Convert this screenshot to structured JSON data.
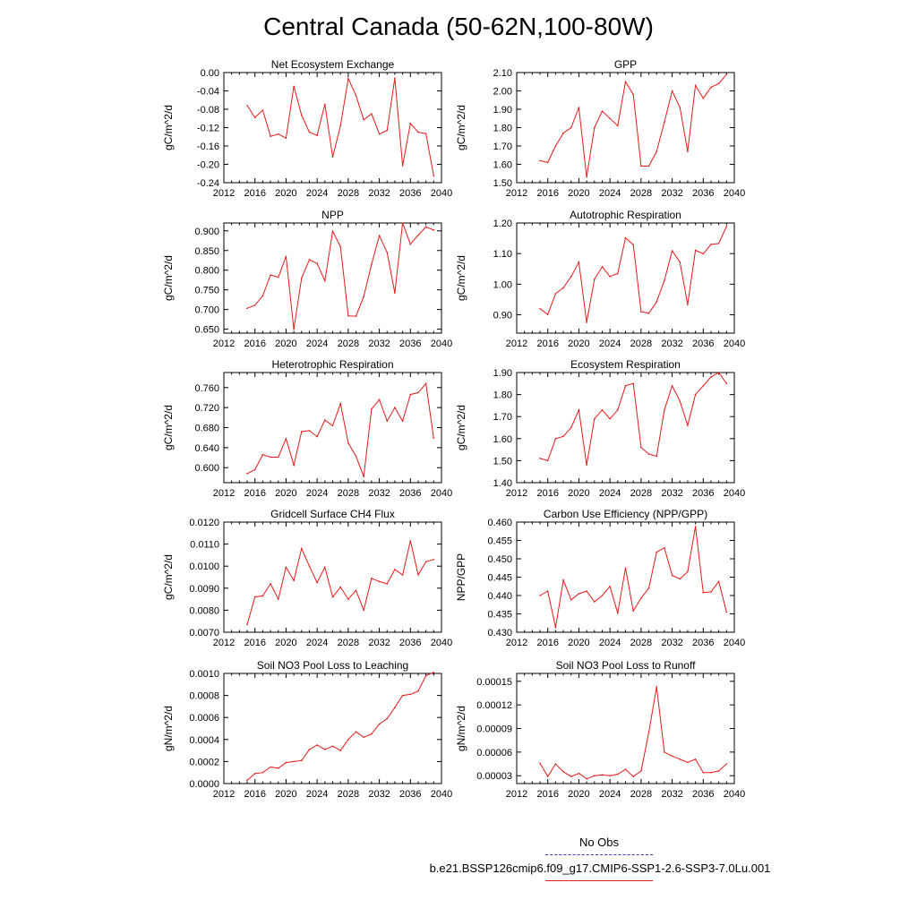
{
  "title": "Central Canada (50-62N,100-80W)",
  "legend": {
    "obs_label": "No Obs",
    "case_label": "b.e21.BSSP126cmip6.f09_g17.CMIP6-SSP1-2.6-SSP3-7.0Lu.001",
    "obs_color": "#3a3ac8",
    "case_color": "#e51a1a"
  },
  "chart_data": [
    {
      "type": "line",
      "title": "Net Ecosystem Exchange",
      "ylabel": "gC/m^2/d",
      "xlim": [
        2012,
        2040
      ],
      "xticks": [
        "2012",
        "2016",
        "2020",
        "2024",
        "2028",
        "2032",
        "2036",
        "2040"
      ],
      "ylim": [
        -0.24,
        0.0
      ],
      "yticks": [
        "0.00",
        "-0.04",
        "-0.08",
        "-0.12",
        "-0.16",
        "-0.20",
        "-0.24"
      ],
      "x": [
        2015,
        2016,
        2017,
        2018,
        2019,
        2020,
        2021,
        2022,
        2023,
        2024,
        2025,
        2026,
        2027,
        2028,
        2029,
        2030,
        2031,
        2032,
        2033,
        2034,
        2035,
        2036,
        2037,
        2038,
        2039
      ],
      "series": [
        {
          "values": [
            -0.072,
            -0.098,
            -0.082,
            -0.139,
            -0.134,
            -0.143,
            -0.03,
            -0.093,
            -0.13,
            -0.137,
            -0.069,
            -0.184,
            -0.116,
            -0.013,
            -0.05,
            -0.103,
            -0.09,
            -0.134,
            -0.126,
            -0.012,
            -0.203,
            -0.111,
            -0.13,
            -0.133,
            -0.225
          ]
        }
      ]
    },
    {
      "type": "line",
      "title": "GPP",
      "ylabel": "gC/m^2/d",
      "xlim": [
        2012,
        2040
      ],
      "xticks": [
        "2012",
        "2016",
        "2020",
        "2024",
        "2028",
        "2032",
        "2036",
        "2040"
      ],
      "ylim": [
        1.5,
        2.1
      ],
      "yticks": [
        "2.10",
        "2.00",
        "1.90",
        "1.80",
        "1.70",
        "1.60",
        "1.50"
      ],
      "x": [
        2015,
        2016,
        2017,
        2018,
        2019,
        2020,
        2021,
        2022,
        2023,
        2024,
        2025,
        2026,
        2027,
        2028,
        2029,
        2030,
        2031,
        2032,
        2033,
        2034,
        2035,
        2036,
        2037,
        2038,
        2039
      ],
      "series": [
        {
          "values": [
            1.62,
            1.61,
            1.7,
            1.77,
            1.8,
            1.91,
            1.53,
            1.8,
            1.89,
            1.85,
            1.81,
            2.05,
            1.98,
            1.59,
            1.59,
            1.67,
            1.83,
            2.0,
            1.91,
            1.67,
            2.03,
            1.96,
            2.02,
            2.04,
            2.09
          ]
        }
      ]
    },
    {
      "type": "line",
      "title": "NPP",
      "ylabel": "gC/m^2/d",
      "xlim": [
        2012,
        2040
      ],
      "xticks": [
        "2012",
        "2016",
        "2020",
        "2024",
        "2028",
        "2032",
        "2036",
        "2040"
      ],
      "ylim": [
        0.64,
        0.92
      ],
      "yticks": [
        "0.900",
        "0.850",
        "0.800",
        "0.750",
        "0.700",
        "0.650"
      ],
      "x": [
        2015,
        2016,
        2017,
        2018,
        2019,
        2020,
        2021,
        2022,
        2023,
        2024,
        2025,
        2026,
        2027,
        2028,
        2029,
        2030,
        2031,
        2032,
        2033,
        2034,
        2035,
        2036,
        2037,
        2038,
        2039
      ],
      "series": [
        {
          "values": [
            0.703,
            0.711,
            0.735,
            0.788,
            0.782,
            0.835,
            0.65,
            0.78,
            0.827,
            0.817,
            0.773,
            0.899,
            0.86,
            0.684,
            0.683,
            0.733,
            0.815,
            0.888,
            0.845,
            0.742,
            0.92,
            0.866,
            0.889,
            0.91,
            0.902
          ]
        }
      ]
    },
    {
      "type": "line",
      "title": "Autotrophic Respiration",
      "ylabel": "gC/m^2/d",
      "xlim": [
        2012,
        2040
      ],
      "xticks": [
        "2012",
        "2016",
        "2020",
        "2024",
        "2028",
        "2032",
        "2036",
        "2040"
      ],
      "ylim": [
        0.84,
        1.2
      ],
      "yticks": [
        "1.20",
        "1.10",
        "1.00",
        "0.90"
      ],
      "x": [
        2015,
        2016,
        2017,
        2018,
        2019,
        2020,
        2021,
        2022,
        2023,
        2024,
        2025,
        2026,
        2027,
        2028,
        2029,
        2030,
        2031,
        2032,
        2033,
        2034,
        2035,
        2036,
        2037,
        2038,
        2039
      ],
      "series": [
        {
          "values": [
            0.92,
            0.901,
            0.969,
            0.988,
            1.025,
            1.072,
            0.875,
            1.016,
            1.057,
            1.025,
            1.035,
            1.151,
            1.129,
            0.91,
            0.905,
            0.942,
            1.012,
            1.109,
            1.072,
            0.933,
            1.111,
            1.099,
            1.13,
            1.133,
            1.189
          ]
        }
      ]
    },
    {
      "type": "line",
      "title": "Heterotrophic Respiration",
      "ylabel": "gC/m^2/d",
      "xlim": [
        2012,
        2040
      ],
      "xticks": [
        "2012",
        "2016",
        "2020",
        "2024",
        "2028",
        "2032",
        "2036",
        "2040"
      ],
      "ylim": [
        0.57,
        0.79
      ],
      "yticks": [
        "0.760",
        "0.720",
        "0.680",
        "0.640",
        "0.600"
      ],
      "x": [
        2015,
        2016,
        2017,
        2018,
        2019,
        2020,
        2021,
        2022,
        2023,
        2024,
        2025,
        2026,
        2027,
        2028,
        2029,
        2030,
        2031,
        2032,
        2033,
        2034,
        2035,
        2036,
        2037,
        2038,
        2039
      ],
      "series": [
        {
          "values": [
            0.588,
            0.596,
            0.626,
            0.621,
            0.621,
            0.658,
            0.605,
            0.672,
            0.674,
            0.662,
            0.695,
            0.684,
            0.728,
            0.649,
            0.623,
            0.582,
            0.717,
            0.736,
            0.693,
            0.72,
            0.693,
            0.746,
            0.75,
            0.768,
            0.659
          ]
        }
      ]
    },
    {
      "type": "line",
      "title": "Ecosystem Respiration",
      "ylabel": "gC/m^2/d",
      "xlim": [
        2012,
        2040
      ],
      "xticks": [
        "2012",
        "2016",
        "2020",
        "2024",
        "2028",
        "2032",
        "2036",
        "2040"
      ],
      "ylim": [
        1.4,
        1.9
      ],
      "yticks": [
        "1.90",
        "1.80",
        "1.70",
        "1.60",
        "1.50",
        "1.40"
      ],
      "x": [
        2015,
        2016,
        2017,
        2018,
        2019,
        2020,
        2021,
        2022,
        2023,
        2024,
        2025,
        2026,
        2027,
        2028,
        2029,
        2030,
        2031,
        2032,
        2033,
        2034,
        2035,
        2036,
        2037,
        2038,
        2039
      ],
      "series": [
        {
          "values": [
            1.51,
            1.5,
            1.6,
            1.61,
            1.65,
            1.73,
            1.48,
            1.69,
            1.73,
            1.69,
            1.73,
            1.84,
            1.85,
            1.56,
            1.53,
            1.52,
            1.73,
            1.84,
            1.77,
            1.66,
            1.8,
            1.84,
            1.88,
            1.9,
            1.85
          ]
        }
      ]
    },
    {
      "type": "line",
      "title": "Gridcell Surface CH4 Flux",
      "ylabel": "gC/m^2/d",
      "xlim": [
        2012,
        2040
      ],
      "xticks": [
        "2012",
        "2016",
        "2020",
        "2024",
        "2028",
        "2032",
        "2036",
        "2040"
      ],
      "ylim": [
        0.007,
        0.012
      ],
      "yticks": [
        "0.0120",
        "0.0110",
        "0.0100",
        "0.0090",
        "0.0080",
        "0.0070"
      ],
      "x": [
        2015,
        2016,
        2017,
        2018,
        2019,
        2020,
        2021,
        2022,
        2023,
        2024,
        2025,
        2026,
        2027,
        2028,
        2029,
        2030,
        2031,
        2032,
        2033,
        2034,
        2035,
        2036,
        2037,
        2038,
        2039
      ],
      "series": [
        {
          "values": [
            0.00735,
            0.0086,
            0.00865,
            0.0092,
            0.0085,
            0.00995,
            0.00935,
            0.0108,
            0.01,
            0.00925,
            0.00995,
            0.0086,
            0.00905,
            0.0085,
            0.0089,
            0.008,
            0.00945,
            0.0093,
            0.0092,
            0.00985,
            0.0096,
            0.01115,
            0.0096,
            0.0102,
            0.0103
          ]
        }
      ]
    },
    {
      "type": "line",
      "title": "Carbon Use Efficiency (NPP/GPP)",
      "ylabel": "NPP/GPP",
      "xlim": [
        2012,
        2040
      ],
      "xticks": [
        "2012",
        "2016",
        "2020",
        "2024",
        "2028",
        "2032",
        "2036",
        "2040"
      ],
      "ylim": [
        0.43,
        0.46
      ],
      "yticks": [
        "0.460",
        "0.455",
        "0.450",
        "0.445",
        "0.440",
        "0.435",
        "0.430"
      ],
      "x": [
        2015,
        2016,
        2017,
        2018,
        2019,
        2020,
        2021,
        2022,
        2023,
        2024,
        2025,
        2026,
        2027,
        2028,
        2029,
        2030,
        2031,
        2032,
        2033,
        2034,
        2035,
        2036,
        2037,
        2038,
        2039
      ],
      "series": [
        {
          "values": [
            0.44,
            0.4412,
            0.4313,
            0.4442,
            0.4388,
            0.4405,
            0.4412,
            0.4383,
            0.44,
            0.4425,
            0.4352,
            0.4475,
            0.4358,
            0.4393,
            0.442,
            0.4518,
            0.453,
            0.4455,
            0.4445,
            0.4465,
            0.4588,
            0.4408,
            0.441,
            0.4438,
            0.4355
          ]
        }
      ]
    },
    {
      "type": "line",
      "title": "Soil NO3 Pool Loss to Leaching",
      "ylabel": "gN/m^2/d",
      "xlim": [
        2012,
        2040
      ],
      "xticks": [
        "2012",
        "2016",
        "2020",
        "2024",
        "2028",
        "2032",
        "2036",
        "2040"
      ],
      "ylim": [
        0.0,
        0.001
      ],
      "yticks": [
        "0.0010",
        "0.0008",
        "0.0006",
        "0.0004",
        "0.0002",
        "0.0000"
      ],
      "x": [
        2015,
        2016,
        2017,
        2018,
        2019,
        2020,
        2021,
        2022,
        2023,
        2024,
        2025,
        2026,
        2027,
        2028,
        2029,
        2030,
        2031,
        2032,
        2033,
        2034,
        2035,
        2036,
        2037,
        2038,
        2039
      ],
      "series": [
        {
          "values": [
            3e-05,
            9e-05,
            0.0001,
            0.00015,
            0.00014,
            0.00019,
            0.0002,
            0.00021,
            0.00031,
            0.00035,
            0.00031,
            0.00034,
            0.0003,
            0.0004,
            0.00047,
            0.00042,
            0.00045,
            0.00054,
            0.00059,
            0.00069,
            0.0008,
            0.00081,
            0.00084,
            0.00098,
            0.00101
          ]
        }
      ]
    },
    {
      "type": "line",
      "title": "Soil NO3 Pool Loss to Runoff",
      "ylabel": "gN/m^2/d",
      "xlim": [
        2012,
        2040
      ],
      "xticks": [
        "2012",
        "2016",
        "2020",
        "2024",
        "2028",
        "2032",
        "2036",
        "2040"
      ],
      "ylim": [
        2e-05,
        0.00016
      ],
      "yticks": [
        "0.00015",
        "0.00012",
        "0.00009",
        "0.00006",
        "0.00003"
      ],
      "x": [
        2015,
        2016,
        2017,
        2018,
        2019,
        2020,
        2021,
        2022,
        2023,
        2024,
        2025,
        2026,
        2027,
        2028,
        2029,
        2030,
        2031,
        2032,
        2033,
        2034,
        2035,
        2036,
        2037,
        2038,
        2039
      ],
      "series": [
        {
          "values": [
            4.6e-05,
            2.9e-05,
            4.5e-05,
            3.5e-05,
            2.9e-05,
            3.3e-05,
            2.6e-05,
            3e-05,
            3.1e-05,
            3e-05,
            3.2e-05,
            3.8e-05,
            2.9e-05,
            3.6e-05,
            8.5e-05,
            0.000143,
            6e-05,
            5.5e-05,
            5.1e-05,
            4.7e-05,
            5.1e-05,
            3.4e-05,
            3.4e-05,
            3.6e-05,
            4.5e-05
          ]
        }
      ]
    }
  ]
}
